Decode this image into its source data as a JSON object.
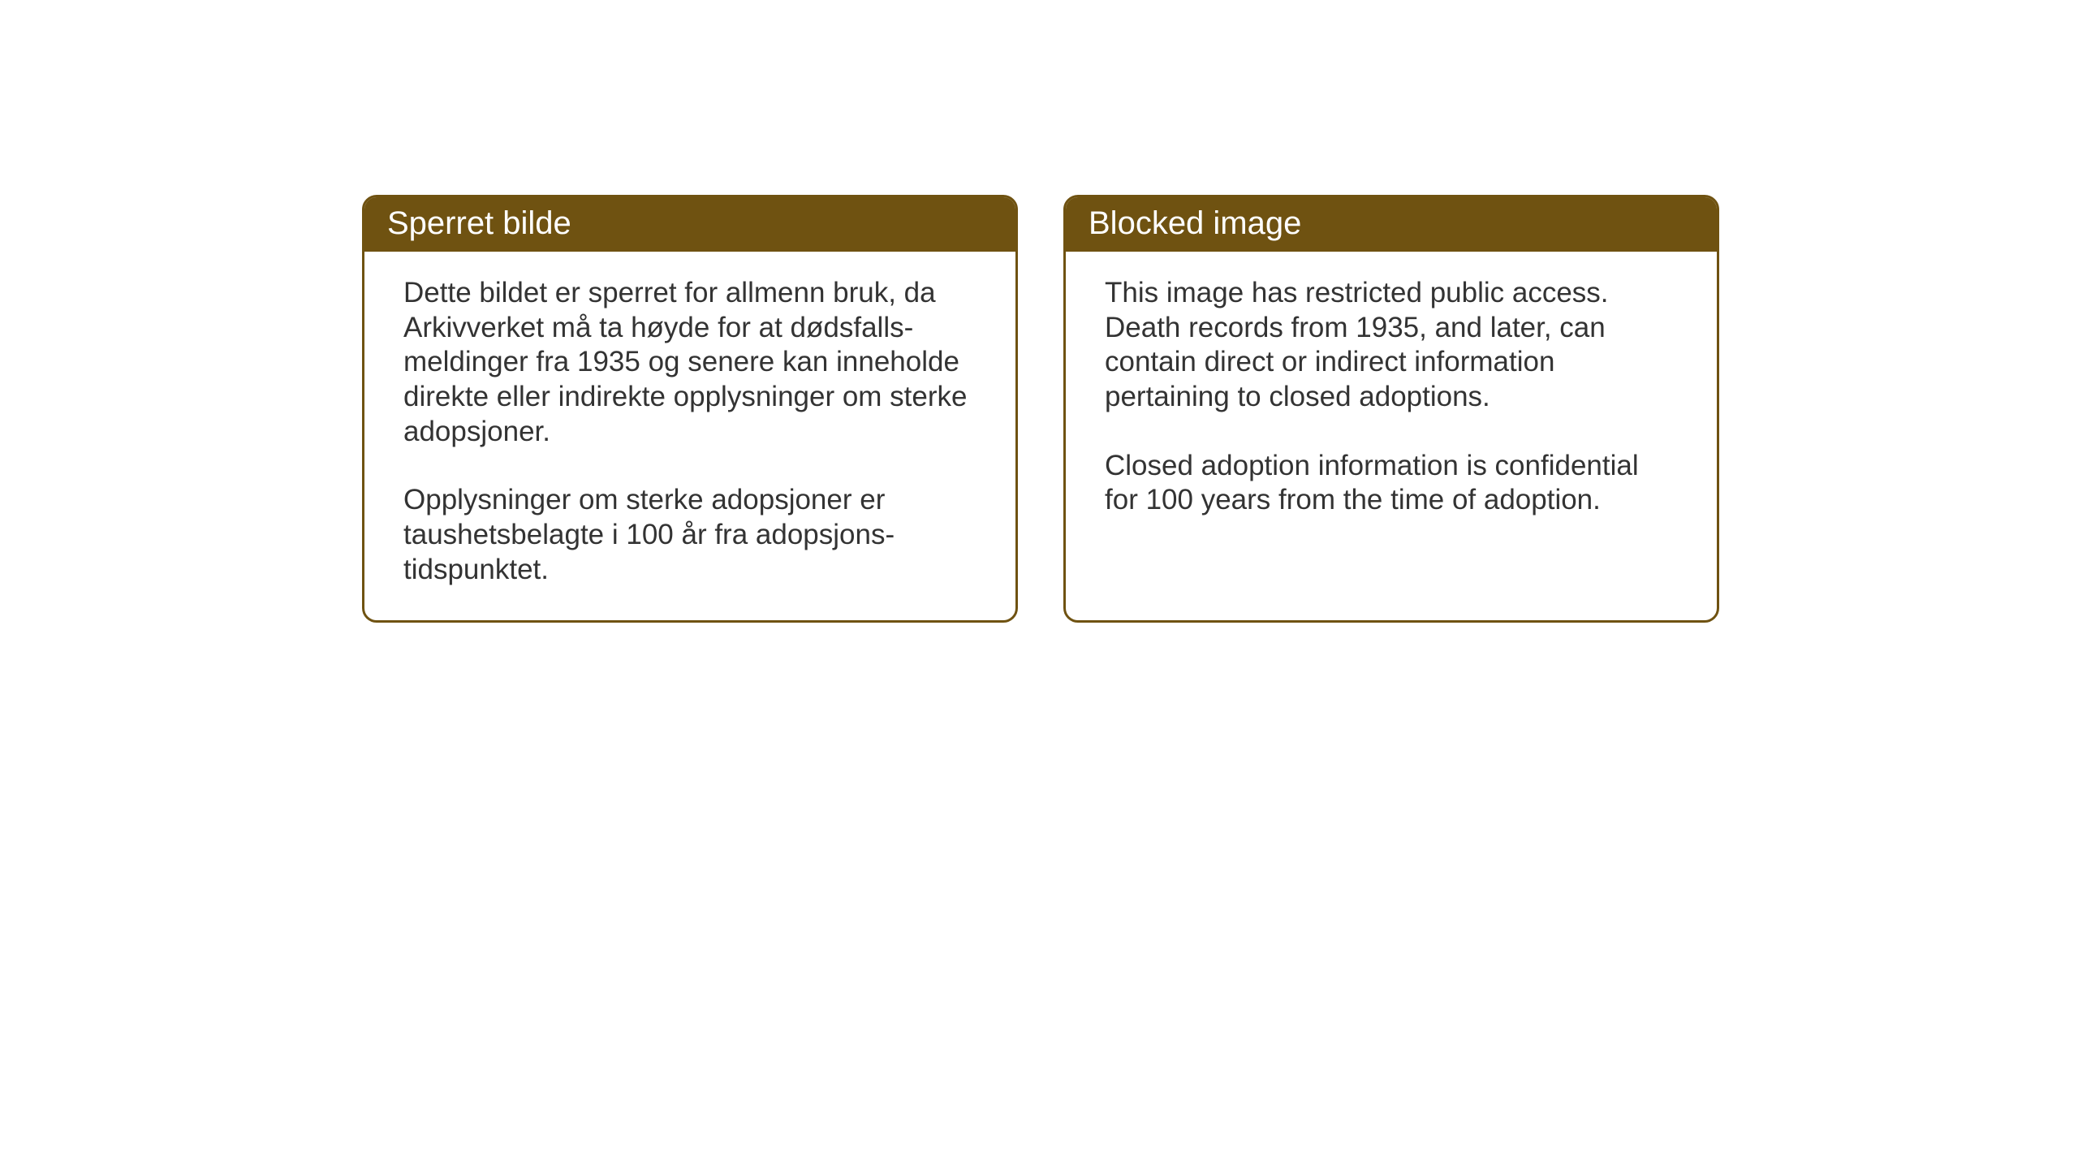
{
  "layout": {
    "background_color": "#ffffff",
    "card_border_color": "#6f5211",
    "card_border_width": 3,
    "card_border_radius": 18,
    "header_background_color": "#6f5211",
    "header_text_color": "#ffffff",
    "body_text_color": "#333333",
    "header_font_size": 40,
    "body_font_size": 35
  },
  "cards": {
    "norwegian": {
      "title": "Sperret bilde",
      "paragraph1": "Dette bildet er sperret for allmenn bruk, da Arkivverket må ta høyde for at dødsfalls-meldinger fra 1935 og senere kan inneholde direkte eller indirekte opplysninger om sterke adopsjoner.",
      "paragraph2": "Opplysninger om sterke adopsjoner er taushetsbelagte i 100 år fra adopsjons-tidspunktet."
    },
    "english": {
      "title": "Blocked image",
      "paragraph1": "This image has restricted public access. Death records from 1935, and later, can contain direct or indirect information pertaining to closed adoptions.",
      "paragraph2": "Closed adoption information is confidential for 100 years from the time of adoption."
    }
  }
}
